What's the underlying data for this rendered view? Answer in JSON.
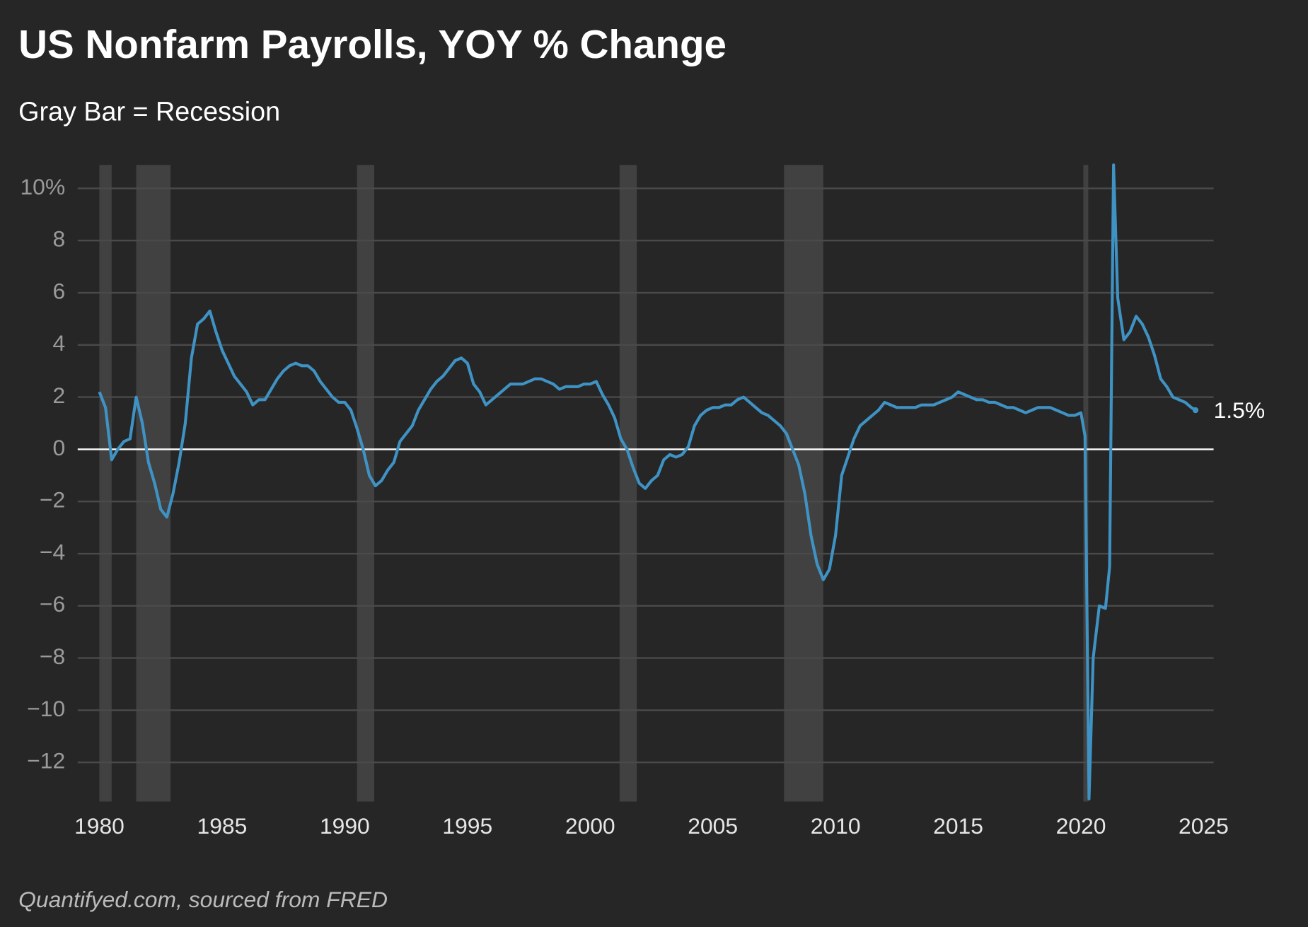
{
  "chart_data": {
    "type": "line",
    "title": "US Nonfarm Payrolls, YOY % Change",
    "subtitle": "Gray Bar = Recession",
    "source": "Quantifyed.com, sourced from FRED",
    "end_label": "1.5%",
    "recession_color": "#414141",
    "recessions": [
      [
        1980.0,
        1980.5
      ],
      [
        1981.5,
        1982.9
      ],
      [
        1990.5,
        1991.2
      ],
      [
        2001.2,
        2001.9
      ],
      [
        2007.9,
        2009.5
      ],
      [
        2020.1,
        2020.3
      ]
    ],
    "xlim": [
      1980,
      2025
    ],
    "xticks": [
      1980,
      1985,
      1990,
      1995,
      2000,
      2005,
      2010,
      2015,
      2020,
      2025
    ],
    "ylim": [
      -13.5,
      10.9
    ],
    "yticks": [
      {
        "value": -12,
        "label": "−12"
      },
      {
        "value": -10,
        "label": "−10"
      },
      {
        "value": -8,
        "label": "−8"
      },
      {
        "value": -6,
        "label": "−6"
      },
      {
        "value": -4,
        "label": "−4"
      },
      {
        "value": -2,
        "label": "−2"
      },
      0,
      2,
      4,
      6,
      8,
      {
        "value": 10,
        "label": "10%"
      }
    ],
    "grid": true,
    "x": [
      1980.0,
      1980.25,
      1980.5,
      1980.75,
      1981.0,
      1981.25,
      1981.5,
      1981.75,
      1982.0,
      1982.25,
      1982.5,
      1982.75,
      1983.0,
      1983.25,
      1983.5,
      1983.75,
      1984.0,
      1984.25,
      1984.5,
      1984.75,
      1985.0,
      1985.25,
      1985.5,
      1985.75,
      1986.0,
      1986.25,
      1986.5,
      1986.75,
      1987.0,
      1987.25,
      1987.5,
      1987.75,
      1988.0,
      1988.25,
      1988.5,
      1988.75,
      1989.0,
      1989.25,
      1989.5,
      1989.75,
      1990.0,
      1990.25,
      1990.5,
      1990.75,
      1991.0,
      1991.25,
      1991.5,
      1991.75,
      1992.0,
      1992.25,
      1992.5,
      1992.75,
      1993.0,
      1993.25,
      1993.5,
      1993.75,
      1994.0,
      1994.25,
      1994.5,
      1994.75,
      1995.0,
      1995.25,
      1995.5,
      1995.75,
      1996.0,
      1996.25,
      1996.5,
      1996.75,
      1997.0,
      1997.25,
      1997.5,
      1997.75,
      1998.0,
      1998.25,
      1998.5,
      1998.75,
      1999.0,
      1999.25,
      1999.5,
      1999.75,
      2000.0,
      2000.25,
      2000.5,
      2000.75,
      2001.0,
      2001.25,
      2001.5,
      2001.75,
      2002.0,
      2002.25,
      2002.5,
      2002.75,
      2003.0,
      2003.25,
      2003.5,
      2003.75,
      2004.0,
      2004.25,
      2004.5,
      2004.75,
      2005.0,
      2005.25,
      2005.5,
      2005.75,
      2006.0,
      2006.25,
      2006.5,
      2006.75,
      2007.0,
      2007.25,
      2007.5,
      2007.75,
      2008.0,
      2008.25,
      2008.5,
      2008.75,
      2009.0,
      2009.25,
      2009.5,
      2009.75,
      2010.0,
      2010.25,
      2010.5,
      2010.75,
      2011.0,
      2011.25,
      2011.5,
      2011.75,
      2012.0,
      2012.25,
      2012.5,
      2012.75,
      2013.0,
      2013.25,
      2013.5,
      2013.75,
      2014.0,
      2014.25,
      2014.5,
      2014.75,
      2015.0,
      2015.25,
      2015.5,
      2015.75,
      2016.0,
      2016.25,
      2016.5,
      2016.75,
      2017.0,
      2017.25,
      2017.5,
      2017.75,
      2018.0,
      2018.25,
      2018.5,
      2018.75,
      2019.0,
      2019.25,
      2019.5,
      2019.75,
      2020.0,
      2020.17,
      2020.33,
      2020.5,
      2020.75,
      2021.0,
      2021.17,
      2021.33,
      2021.5,
      2021.75,
      2022.0,
      2022.25,
      2022.5,
      2022.75,
      2023.0,
      2023.25,
      2023.5,
      2023.75,
      2024.0,
      2024.25,
      2024.5,
      2024.67
    ],
    "series": [
      {
        "name": "Nonfarm Payrolls YOY",
        "color": "#3f93c4",
        "values": [
          2.2,
          1.6,
          -0.4,
          0.0,
          0.3,
          0.4,
          2.0,
          1.0,
          -0.5,
          -1.3,
          -2.3,
          -2.6,
          -1.7,
          -0.5,
          1.0,
          3.5,
          4.8,
          5.0,
          5.3,
          4.5,
          3.8,
          3.3,
          2.8,
          2.5,
          2.2,
          1.7,
          1.9,
          1.9,
          2.3,
          2.7,
          3.0,
          3.2,
          3.3,
          3.2,
          3.2,
          3.0,
          2.6,
          2.3,
          2.0,
          1.8,
          1.8,
          1.5,
          0.8,
          0.0,
          -1.0,
          -1.4,
          -1.2,
          -0.8,
          -0.5,
          0.3,
          0.6,
          0.9,
          1.5,
          1.9,
          2.3,
          2.6,
          2.8,
          3.1,
          3.4,
          3.5,
          3.3,
          2.5,
          2.2,
          1.7,
          1.9,
          2.1,
          2.3,
          2.5,
          2.5,
          2.5,
          2.6,
          2.7,
          2.7,
          2.6,
          2.5,
          2.3,
          2.4,
          2.4,
          2.4,
          2.5,
          2.5,
          2.6,
          2.1,
          1.7,
          1.2,
          0.4,
          0.0,
          -0.7,
          -1.3,
          -1.5,
          -1.2,
          -1.0,
          -0.4,
          -0.2,
          -0.3,
          -0.2,
          0.1,
          0.9,
          1.3,
          1.5,
          1.6,
          1.6,
          1.7,
          1.7,
          1.9,
          2.0,
          1.8,
          1.6,
          1.4,
          1.3,
          1.1,
          0.9,
          0.6,
          0.0,
          -0.6,
          -1.7,
          -3.3,
          -4.4,
          -5.0,
          -4.6,
          -3.3,
          -1.0,
          -0.3,
          0.4,
          0.9,
          1.1,
          1.3,
          1.5,
          1.8,
          1.7,
          1.6,
          1.6,
          1.6,
          1.6,
          1.7,
          1.7,
          1.7,
          1.8,
          1.9,
          2.0,
          2.2,
          2.1,
          2.0,
          1.9,
          1.9,
          1.8,
          1.8,
          1.7,
          1.6,
          1.6,
          1.5,
          1.4,
          1.5,
          1.6,
          1.6,
          1.6,
          1.5,
          1.4,
          1.3,
          1.3,
          1.4,
          0.5,
          -13.4,
          -8.0,
          -6.0,
          -6.1,
          -4.5,
          10.9,
          5.8,
          4.2,
          4.5,
          5.1,
          4.8,
          4.3,
          3.6,
          2.7,
          2.4,
          2.0,
          1.9,
          1.8,
          1.6,
          1.5
        ]
      }
    ]
  }
}
